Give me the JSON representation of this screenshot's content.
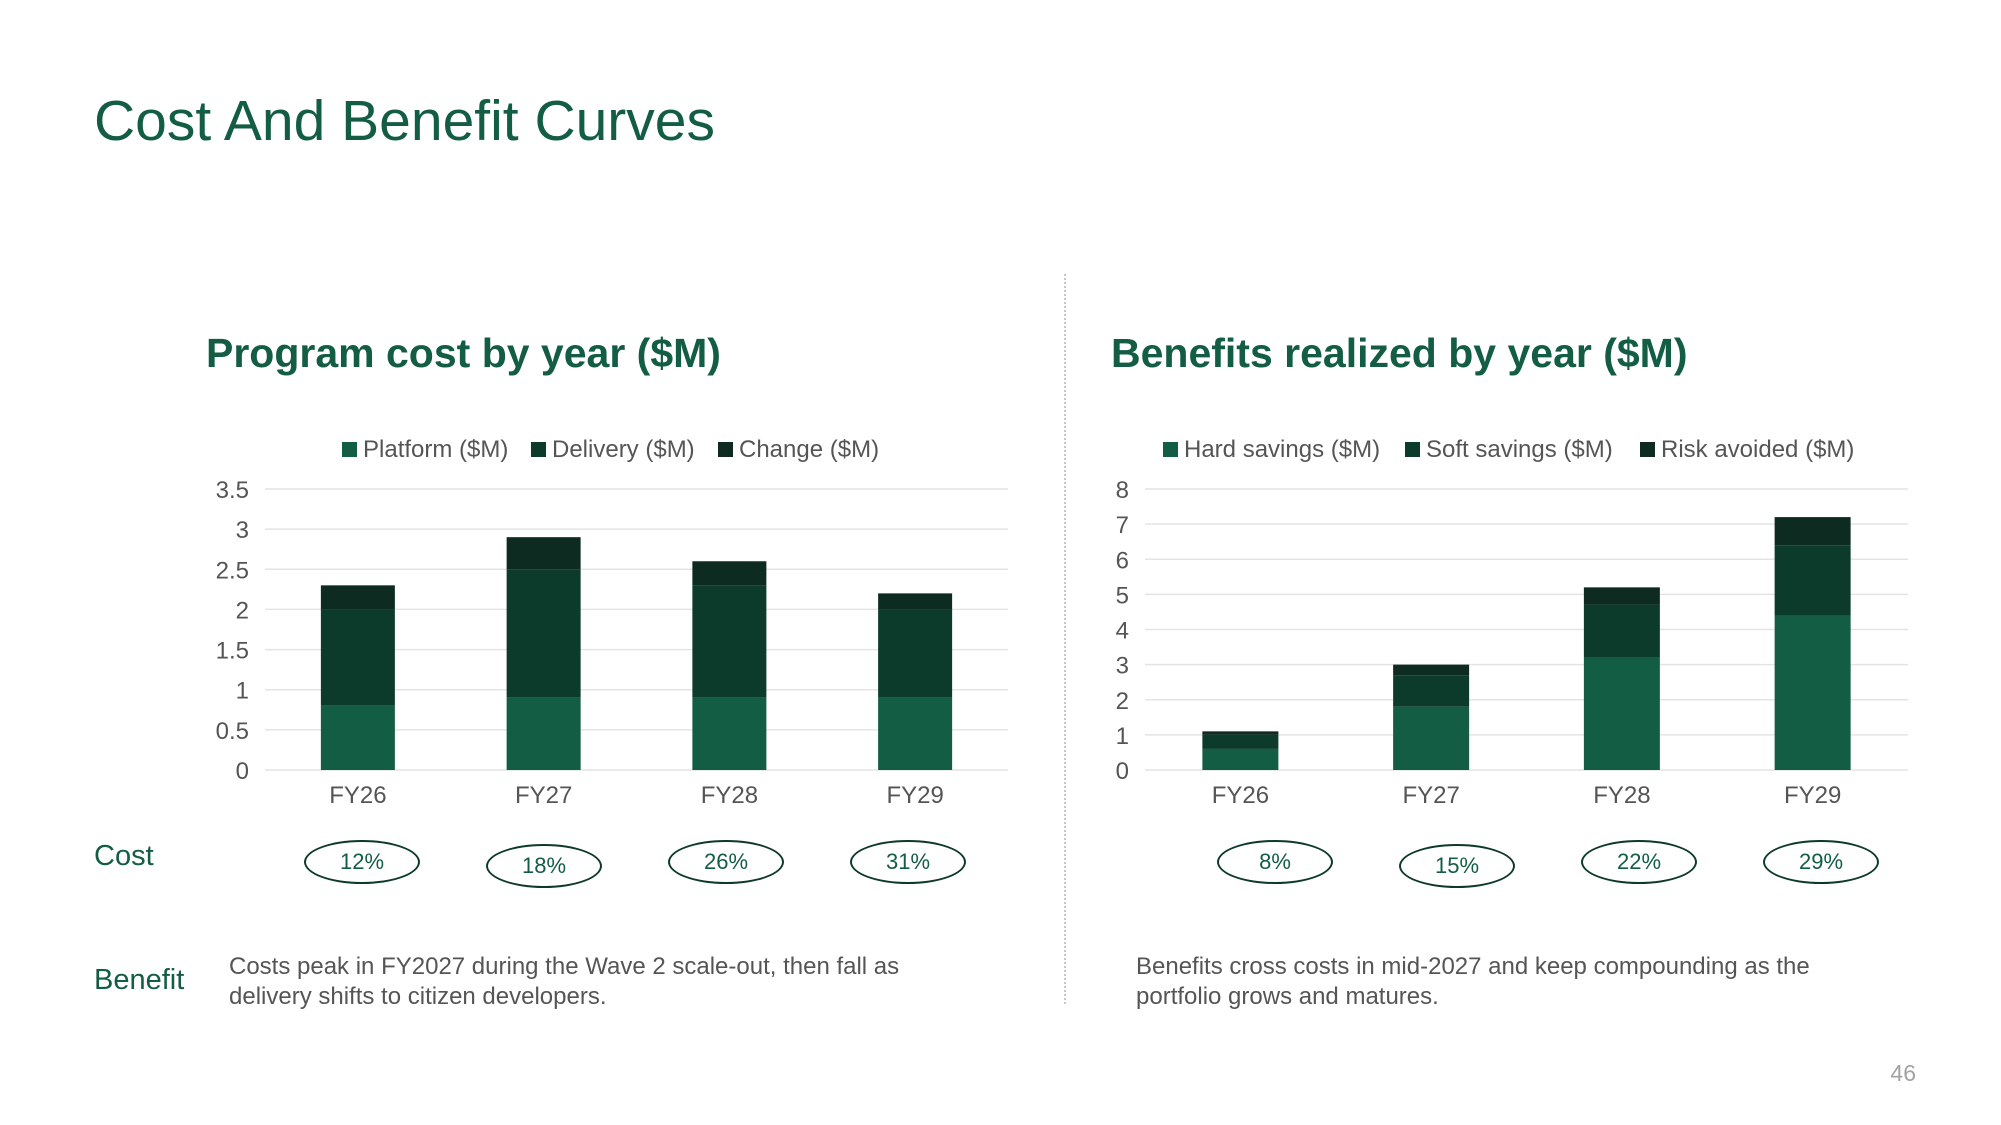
{
  "slide": {
    "title": "Cost And Benefit Curves",
    "page_number": "46"
  },
  "row_labels": {
    "cost": "Cost",
    "benefit": "Benefit"
  },
  "cost_panel": {
    "percentages": [
      "12%",
      "18%",
      "26%",
      "31%"
    ],
    "caption": "Costs peak in FY2027 during the Wave 2 scale-out, then fall as delivery shifts to citizen developers."
  },
  "benefit_panel": {
    "percentages": [
      "8%",
      "15%",
      "22%",
      "29%"
    ],
    "caption": "Benefits cross costs in mid-2027 and keep compounding as the portfolio grows and matures."
  },
  "colors": {
    "title": "#135d44",
    "series_1": "#135d44",
    "series_2": "#0c3b2c",
    "series_3": "#0d2b21",
    "gridline": "#e4e4e4",
    "axis_text": "#555555"
  },
  "chart_data": [
    {
      "type": "bar",
      "stacked": true,
      "title": "Program cost by year ($M)",
      "categories": [
        "FY26",
        "FY27",
        "FY28",
        "FY29"
      ],
      "series": [
        {
          "name": "Platform ($M)",
          "values": [
            0.8,
            0.9,
            0.9,
            0.9
          ]
        },
        {
          "name": "Delivery ($M)",
          "values": [
            1.2,
            1.6,
            1.4,
            1.1
          ]
        },
        {
          "name": "Change ($M)",
          "values": [
            0.3,
            0.4,
            0.3,
            0.2
          ]
        }
      ],
      "ylim": [
        0,
        3.5
      ],
      "yticks": [
        "0",
        "0.5",
        "1",
        "1.5",
        "2",
        "2.5",
        "3",
        "3.5"
      ],
      "grid": true,
      "legend": "top"
    },
    {
      "type": "bar",
      "stacked": true,
      "title": "Benefits realized by year ($M)",
      "categories": [
        "FY26",
        "FY27",
        "FY28",
        "FY29"
      ],
      "series": [
        {
          "name": "Hard savings ($M)",
          "values": [
            0.6,
            1.8,
            3.2,
            4.4
          ]
        },
        {
          "name": "Soft savings ($M)",
          "values": [
            0.4,
            0.9,
            1.5,
            2.0
          ]
        },
        {
          "name": "Risk avoided ($M)",
          "values": [
            0.1,
            0.3,
            0.5,
            0.8
          ]
        }
      ],
      "ylim": [
        0,
        8
      ],
      "yticks": [
        "0",
        "1",
        "2",
        "3",
        "4",
        "5",
        "6",
        "7",
        "8"
      ],
      "grid": true,
      "legend": "top"
    }
  ]
}
